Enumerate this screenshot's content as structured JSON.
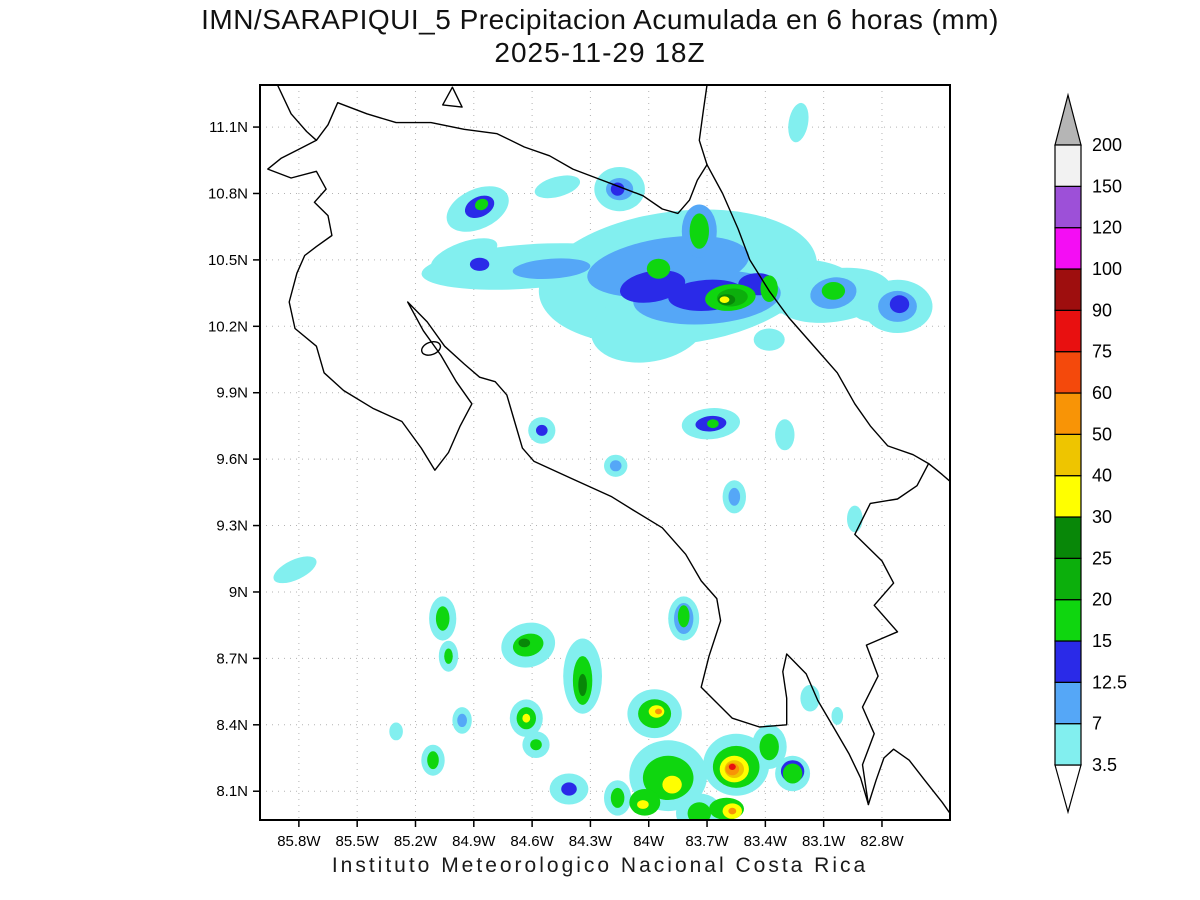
{
  "footer": "Instituto Meteorologico Nacional Costa Rica",
  "chart_data": {
    "type": "heatmap",
    "title": "IMN/SARAPIQUI_5 Precipitacion Acumulada en 6 horas (mm)",
    "subtitle": "2025-11-29 18Z",
    "xlabel": "",
    "ylabel": "",
    "grid": "dotted",
    "legend_position": "right",
    "lon_range_w": [
      86.0,
      82.45
    ],
    "lat_range_n": [
      7.97,
      11.29
    ],
    "x_ticks": [
      {
        "lon": 85.8,
        "label": "85.8W"
      },
      {
        "lon": 85.5,
        "label": "85.5W"
      },
      {
        "lon": 85.2,
        "label": "85.2W"
      },
      {
        "lon": 84.9,
        "label": "84.9W"
      },
      {
        "lon": 84.6,
        "label": "84.6W"
      },
      {
        "lon": 84.3,
        "label": "84.3W"
      },
      {
        "lon": 84.0,
        "label": "84W"
      },
      {
        "lon": 83.7,
        "label": "83.7W"
      },
      {
        "lon": 83.4,
        "label": "83.4W"
      },
      {
        "lon": 83.1,
        "label": "83.1W"
      },
      {
        "lon": 82.8,
        "label": "82.8W"
      }
    ],
    "y_ticks": [
      {
        "lat": 11.1,
        "label": "11.1N"
      },
      {
        "lat": 10.8,
        "label": "10.8N"
      },
      {
        "lat": 10.5,
        "label": "10.5N"
      },
      {
        "lat": 10.2,
        "label": "10.2N"
      },
      {
        "lat": 9.9,
        "label": "9.9N"
      },
      {
        "lat": 9.6,
        "label": "9.6N"
      },
      {
        "lat": 9.3,
        "label": "9.3N"
      },
      {
        "lat": 9.0,
        "label": "9N"
      },
      {
        "lat": 8.7,
        "label": "8.7N"
      },
      {
        "lat": 8.4,
        "label": "8.4N"
      },
      {
        "lat": 8.1,
        "label": "8.1N"
      }
    ],
    "colorbar": {
      "levels": [
        3.5,
        7,
        12.5,
        15,
        20,
        25,
        30,
        40,
        50,
        60,
        75,
        90,
        100,
        120,
        150,
        200
      ],
      "level_labels": [
        "3.5",
        "7",
        "12.5",
        "15",
        "20",
        "25",
        "30",
        "40",
        "50",
        "60",
        "75",
        "90",
        "100",
        "120",
        "150",
        "200"
      ],
      "colors": [
        "#82efef",
        "#55a7f7",
        "#2a2ae8",
        "#0fd60f",
        "#0caf0c",
        "#088708",
        "#ffff00",
        "#eec500",
        "#f89406",
        "#f4490c",
        "#e81010",
        "#9e0e0e",
        "#f40df4",
        "#9d50d8",
        "#f2f2f2"
      ],
      "under_color": "#ffffff",
      "over_color": "#b5b5b5"
    },
    "cells_format": [
      "lon_w",
      "lat_n",
      "value_mm",
      "rx_deg",
      "ry_deg",
      "rotation_deg"
    ],
    "cells": [
      [
        84.88,
        10.73,
        5,
        0.17,
        0.09,
        -25
      ],
      [
        84.87,
        10.74,
        13,
        0.08,
        0.045,
        -25
      ],
      [
        84.86,
        10.75,
        17,
        0.035,
        0.025,
        -25
      ],
      [
        84.47,
        10.83,
        5,
        0.12,
        0.045,
        -15
      ],
      [
        84.15,
        10.82,
        5,
        0.13,
        0.1,
        0
      ],
      [
        84.15,
        10.82,
        9,
        0.07,
        0.05,
        0
      ],
      [
        84.16,
        10.82,
        13,
        0.035,
        0.03,
        0
      ],
      [
        84.62,
        10.47,
        5,
        0.55,
        0.1,
        -4
      ],
      [
        84.95,
        10.52,
        5,
        0.18,
        0.06,
        -20
      ],
      [
        84.5,
        10.46,
        9,
        0.2,
        0.045,
        -4
      ],
      [
        84.87,
        10.48,
        13,
        0.05,
        0.03,
        0
      ],
      [
        83.85,
        10.42,
        5,
        0.72,
        0.3,
        -7
      ],
      [
        84.0,
        10.2,
        5,
        0.3,
        0.16,
        -10
      ],
      [
        83.3,
        10.38,
        5,
        0.35,
        0.12,
        -5
      ],
      [
        83.38,
        10.14,
        5,
        0.08,
        0.05,
        0
      ],
      [
        83.9,
        10.47,
        9,
        0.42,
        0.13,
        -8
      ],
      [
        83.7,
        10.33,
        9,
        0.38,
        0.12,
        -4
      ],
      [
        83.74,
        10.63,
        9,
        0.09,
        0.12,
        0
      ],
      [
        83.98,
        10.38,
        13,
        0.17,
        0.07,
        -10
      ],
      [
        83.7,
        10.34,
        13,
        0.2,
        0.07,
        -4
      ],
      [
        83.44,
        10.39,
        13,
        0.1,
        0.05,
        0
      ],
      [
        83.95,
        10.46,
        17,
        0.06,
        0.045,
        0
      ],
      [
        83.74,
        10.63,
        17,
        0.05,
        0.08,
        0
      ],
      [
        83.58,
        10.33,
        17,
        0.13,
        0.06,
        -5
      ],
      [
        83.38,
        10.37,
        17,
        0.045,
        0.06,
        0
      ],
      [
        83.57,
        10.33,
        22,
        0.08,
        0.04,
        -5
      ],
      [
        83.6,
        10.32,
        27,
        0.045,
        0.025,
        0
      ],
      [
        83.61,
        10.32,
        33,
        0.025,
        0.015,
        0
      ],
      [
        83.05,
        10.34,
        5,
        0.3,
        0.12,
        -8
      ],
      [
        82.85,
        10.3,
        5,
        0.12,
        0.08,
        0
      ],
      [
        83.05,
        10.35,
        9,
        0.12,
        0.07,
        -10
      ],
      [
        83.05,
        10.36,
        17,
        0.06,
        0.04,
        0
      ],
      [
        82.72,
        10.29,
        5,
        0.18,
        0.12,
        0
      ],
      [
        82.72,
        10.29,
        9,
        0.1,
        0.07,
        0
      ],
      [
        82.71,
        10.3,
        13,
        0.05,
        0.04,
        0
      ],
      [
        83.23,
        11.12,
        5,
        0.05,
        0.09,
        10
      ],
      [
        84.55,
        9.73,
        5,
        0.07,
        0.06,
        0
      ],
      [
        84.55,
        9.73,
        13,
        0.03,
        0.025,
        0
      ],
      [
        84.17,
        9.57,
        5,
        0.06,
        0.05,
        0
      ],
      [
        84.17,
        9.57,
        9,
        0.03,
        0.025,
        0
      ],
      [
        83.68,
        9.76,
        5,
        0.15,
        0.07,
        -5
      ],
      [
        83.68,
        9.76,
        13,
        0.08,
        0.035,
        -5
      ],
      [
        83.67,
        9.76,
        17,
        0.03,
        0.02,
        0
      ],
      [
        83.56,
        9.43,
        5,
        0.06,
        0.075,
        0
      ],
      [
        83.56,
        9.43,
        9,
        0.03,
        0.04,
        0
      ],
      [
        83.3,
        9.71,
        5,
        0.05,
        0.07,
        0
      ],
      [
        82.94,
        9.33,
        5,
        0.04,
        0.06,
        0
      ],
      [
        85.82,
        9.1,
        5,
        0.12,
        0.045,
        -25
      ],
      [
        85.06,
        8.88,
        5,
        0.07,
        0.1,
        0
      ],
      [
        85.06,
        8.88,
        17,
        0.035,
        0.055,
        0
      ],
      [
        85.03,
        8.71,
        5,
        0.05,
        0.07,
        0
      ],
      [
        85.03,
        8.71,
        17,
        0.022,
        0.035,
        0
      ],
      [
        84.62,
        8.76,
        5,
        0.14,
        0.1,
        -15
      ],
      [
        84.62,
        8.76,
        17,
        0.08,
        0.05,
        -15
      ],
      [
        84.64,
        8.77,
        27,
        0.03,
        0.02,
        0
      ],
      [
        84.34,
        8.62,
        5,
        0.1,
        0.17,
        0
      ],
      [
        84.34,
        8.6,
        17,
        0.05,
        0.11,
        0
      ],
      [
        84.34,
        8.58,
        27,
        0.022,
        0.05,
        0
      ],
      [
        84.63,
        8.43,
        5,
        0.085,
        0.085,
        0
      ],
      [
        84.63,
        8.43,
        17,
        0.05,
        0.05,
        0
      ],
      [
        84.63,
        8.43,
        33,
        0.02,
        0.02,
        0
      ],
      [
        84.58,
        8.31,
        5,
        0.07,
        0.06,
        0
      ],
      [
        84.58,
        8.31,
        17,
        0.03,
        0.025,
        0
      ],
      [
        84.96,
        8.42,
        5,
        0.05,
        0.06,
        0
      ],
      [
        84.96,
        8.42,
        9,
        0.025,
        0.03,
        0
      ],
      [
        85.11,
        8.24,
        5,
        0.06,
        0.07,
        0
      ],
      [
        85.11,
        8.24,
        17,
        0.03,
        0.04,
        0
      ],
      [
        85.3,
        8.37,
        5,
        0.035,
        0.04,
        0
      ],
      [
        84.41,
        8.11,
        5,
        0.1,
        0.07,
        0
      ],
      [
        84.41,
        8.11,
        13,
        0.04,
        0.03,
        0
      ],
      [
        83.82,
        8.88,
        5,
        0.08,
        0.1,
        0
      ],
      [
        83.82,
        8.88,
        9,
        0.05,
        0.07,
        0
      ],
      [
        83.82,
        8.89,
        17,
        0.03,
        0.05,
        0
      ],
      [
        83.97,
        8.45,
        5,
        0.14,
        0.11,
        0
      ],
      [
        83.97,
        8.45,
        17,
        0.085,
        0.065,
        0
      ],
      [
        83.96,
        8.46,
        33,
        0.04,
        0.028,
        0
      ],
      [
        83.95,
        8.46,
        55,
        0.018,
        0.013,
        0
      ],
      [
        83.9,
        8.17,
        5,
        0.2,
        0.16,
        0
      ],
      [
        83.9,
        8.16,
        17,
        0.13,
        0.1,
        0
      ],
      [
        83.88,
        8.13,
        33,
        0.05,
        0.04,
        0
      ],
      [
        84.02,
        8.05,
        17,
        0.08,
        0.06,
        0
      ],
      [
        84.03,
        8.04,
        33,
        0.03,
        0.02,
        0
      ],
      [
        84.16,
        8.07,
        5,
        0.07,
        0.08,
        0
      ],
      [
        84.16,
        8.07,
        17,
        0.035,
        0.045,
        0
      ],
      [
        83.55,
        8.22,
        5,
        0.17,
        0.14,
        0
      ],
      [
        83.55,
        8.21,
        17,
        0.12,
        0.095,
        0
      ],
      [
        83.56,
        8.2,
        33,
        0.075,
        0.06,
        0
      ],
      [
        83.56,
        8.2,
        45,
        0.05,
        0.04,
        0
      ],
      [
        83.57,
        8.2,
        55,
        0.035,
        0.028,
        0
      ],
      [
        83.57,
        8.21,
        80,
        0.018,
        0.014,
        0
      ],
      [
        83.6,
        8.02,
        17,
        0.09,
        0.05,
        0
      ],
      [
        83.57,
        8.01,
        33,
        0.05,
        0.035,
        0
      ],
      [
        83.57,
        8.01,
        55,
        0.02,
        0.015,
        0
      ],
      [
        83.38,
        8.3,
        5,
        0.09,
        0.1,
        0
      ],
      [
        83.38,
        8.3,
        17,
        0.05,
        0.06,
        0
      ],
      [
        83.26,
        8.18,
        5,
        0.09,
        0.08,
        0
      ],
      [
        83.26,
        8.19,
        13,
        0.06,
        0.05,
        0
      ],
      [
        83.26,
        8.18,
        17,
        0.05,
        0.045,
        0
      ],
      [
        83.17,
        8.52,
        5,
        0.05,
        0.06,
        0
      ],
      [
        83.03,
        8.44,
        5,
        0.03,
        0.04,
        0
      ],
      [
        83.74,
        8.0,
        5,
        0.12,
        0.09,
        0
      ],
      [
        83.74,
        8.0,
        17,
        0.06,
        0.05,
        0
      ]
    ],
    "coastlines": [
      [
        [
          85.91,
          11.29
        ],
        [
          85.84,
          11.16
        ],
        [
          85.76,
          11.08
        ],
        [
          85.71,
          11.04
        ],
        [
          85.8,
          11.0
        ],
        [
          85.89,
          10.96
        ],
        [
          85.96,
          10.91
        ],
        [
          85.84,
          10.87
        ],
        [
          85.71,
          10.9
        ],
        [
          85.66,
          10.82
        ],
        [
          85.72,
          10.76
        ],
        [
          85.65,
          10.7
        ],
        [
          85.63,
          10.61
        ],
        [
          85.71,
          10.56
        ],
        [
          85.77,
          10.52
        ],
        [
          85.81,
          10.44
        ],
        [
          85.85,
          10.31
        ],
        [
          85.82,
          10.19
        ],
        [
          85.71,
          10.11
        ],
        [
          85.67,
          9.99
        ],
        [
          85.57,
          9.91
        ],
        [
          85.42,
          9.83
        ],
        [
          85.27,
          9.77
        ],
        [
          85.17,
          9.65
        ],
        [
          85.1,
          9.55
        ],
        [
          85.03,
          9.63
        ],
        [
          84.97,
          9.75
        ],
        [
          84.91,
          9.85
        ],
        [
          84.99,
          9.95
        ],
        [
          85.07,
          10.07
        ],
        [
          85.16,
          10.18
        ],
        [
          85.24,
          10.31
        ],
        [
          85.14,
          10.22
        ],
        [
          85.05,
          10.11
        ],
        [
          84.95,
          10.03
        ],
        [
          84.87,
          9.97
        ],
        [
          84.79,
          9.95
        ],
        [
          84.73,
          9.89
        ],
        [
          84.69,
          9.77
        ],
        [
          84.65,
          9.65
        ],
        [
          84.59,
          9.59
        ],
        [
          84.39,
          9.51
        ],
        [
          84.19,
          9.43
        ],
        [
          84.08,
          9.37
        ],
        [
          83.93,
          9.29
        ],
        [
          83.81,
          9.17
        ],
        [
          83.73,
          9.05
        ],
        [
          83.65,
          8.97
        ],
        [
          83.63,
          8.87
        ],
        [
          83.69,
          8.71
        ],
        [
          83.73,
          8.57
        ],
        [
          83.57,
          8.43
        ],
        [
          83.43,
          8.39
        ],
        [
          83.29,
          8.4
        ],
        [
          83.29,
          8.52
        ],
        [
          83.31,
          8.64
        ],
        [
          83.29,
          8.72
        ],
        [
          83.19,
          8.63
        ],
        [
          83.13,
          8.51
        ],
        [
          83.05,
          8.39
        ],
        [
          82.97,
          8.27
        ],
        [
          82.91,
          8.16
        ],
        [
          82.87,
          8.04
        ],
        [
          82.83,
          8.15
        ],
        [
          82.79,
          8.25
        ],
        [
          82.74,
          8.29
        ],
        [
          82.66,
          8.24
        ],
        [
          82.58,
          8.15
        ],
        [
          82.49,
          8.05
        ],
        [
          82.45,
          8.0
        ]
      ],
      [
        [
          85.71,
          11.04
        ],
        [
          85.65,
          11.11
        ],
        [
          85.6,
          11.21
        ],
        [
          85.45,
          11.16
        ],
        [
          85.3,
          11.12
        ],
        [
          85.12,
          11.12
        ],
        [
          84.95,
          11.09
        ],
        [
          84.78,
          11.07
        ],
        [
          84.64,
          11.01
        ],
        [
          84.51,
          10.97
        ],
        [
          84.39,
          10.91
        ],
        [
          84.27,
          10.87
        ],
        [
          84.15,
          10.83
        ],
        [
          84.03,
          10.79
        ],
        [
          83.93,
          10.73
        ],
        [
          83.85,
          10.71
        ],
        [
          83.79,
          10.77
        ],
        [
          83.75,
          10.86
        ],
        [
          83.7,
          10.93
        ]
      ],
      [
        [
          83.7,
          10.93
        ],
        [
          83.74,
          11.04
        ],
        [
          83.72,
          11.17
        ],
        [
          83.7,
          11.29
        ]
      ],
      [
        [
          83.7,
          10.93
        ],
        [
          83.62,
          10.8
        ],
        [
          83.54,
          10.64
        ],
        [
          83.48,
          10.5
        ],
        [
          83.38,
          10.36
        ],
        [
          83.28,
          10.24
        ],
        [
          83.16,
          10.12
        ],
        [
          83.03,
          9.99
        ],
        [
          82.94,
          9.85
        ],
        [
          82.86,
          9.75
        ],
        [
          82.77,
          9.66
        ],
        [
          82.64,
          9.62
        ],
        [
          82.56,
          9.58
        ],
        [
          82.49,
          9.53
        ],
        [
          82.45,
          9.5
        ]
      ],
      [
        [
          82.56,
          9.58
        ],
        [
          82.62,
          9.48
        ],
        [
          82.72,
          9.42
        ],
        [
          82.86,
          9.4
        ],
        [
          82.94,
          9.26
        ],
        [
          82.8,
          9.14
        ],
        [
          82.74,
          9.04
        ],
        [
          82.84,
          8.94
        ],
        [
          82.72,
          8.82
        ],
        [
          82.88,
          8.76
        ],
        [
          82.82,
          8.62
        ],
        [
          82.9,
          8.48
        ],
        [
          82.84,
          8.36
        ],
        [
          82.9,
          8.22
        ],
        [
          82.87,
          8.04
        ]
      ]
    ],
    "islands": [
      {
        "name": "isla-chira",
        "lon": 85.12,
        "lat": 10.1,
        "rx": 0.05,
        "ry": 0.028,
        "rot": -20
      },
      {
        "name": "island-triangle",
        "points": [
          [
            85.01,
            11.28
          ],
          [
            84.96,
            11.19
          ],
          [
            85.06,
            11.2
          ]
        ]
      }
    ]
  }
}
